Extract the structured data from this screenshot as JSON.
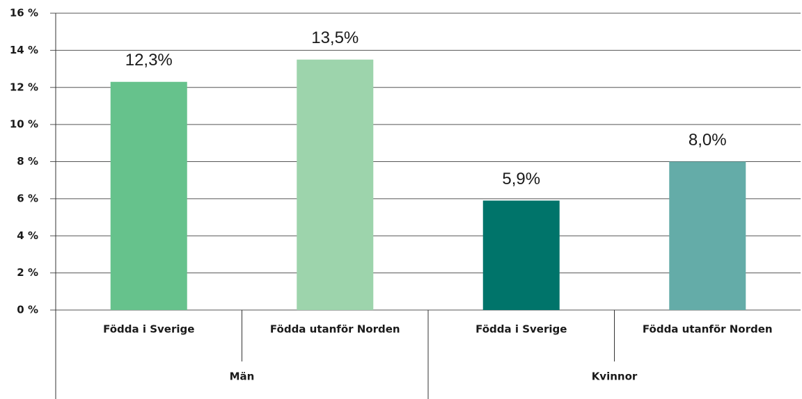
{
  "chart_data": {
    "type": "bar",
    "categories": [
      "Födda i Sverige",
      "Födda utanför Norden",
      "Födda i Sverige",
      "Födda utanför Norden"
    ],
    "groups": [
      "Män",
      "Kvinnor"
    ],
    "values": [
      12.3,
      13.5,
      5.9,
      8.0
    ],
    "value_labels": [
      "12,3%",
      "13,5%",
      "5,9%",
      "8,0%"
    ],
    "colors": [
      "#66c28c",
      "#9dd4ac",
      "#00746a",
      "#64aca8"
    ],
    "ylim": [
      0,
      16
    ],
    "yticks": [
      {
        "value": 0,
        "label": "0 %"
      },
      {
        "value": 2,
        "label": "2 %"
      },
      {
        "value": 4,
        "label": "4 %"
      },
      {
        "value": 6,
        "label": "6 %"
      },
      {
        "value": 8,
        "label": "8 %"
      },
      {
        "value": 10,
        "label": "10 %"
      },
      {
        "value": 12,
        "label": "12 %"
      },
      {
        "value": 14,
        "label": "14 %"
      },
      {
        "value": 16,
        "label": "16 %"
      }
    ],
    "grid": true
  }
}
